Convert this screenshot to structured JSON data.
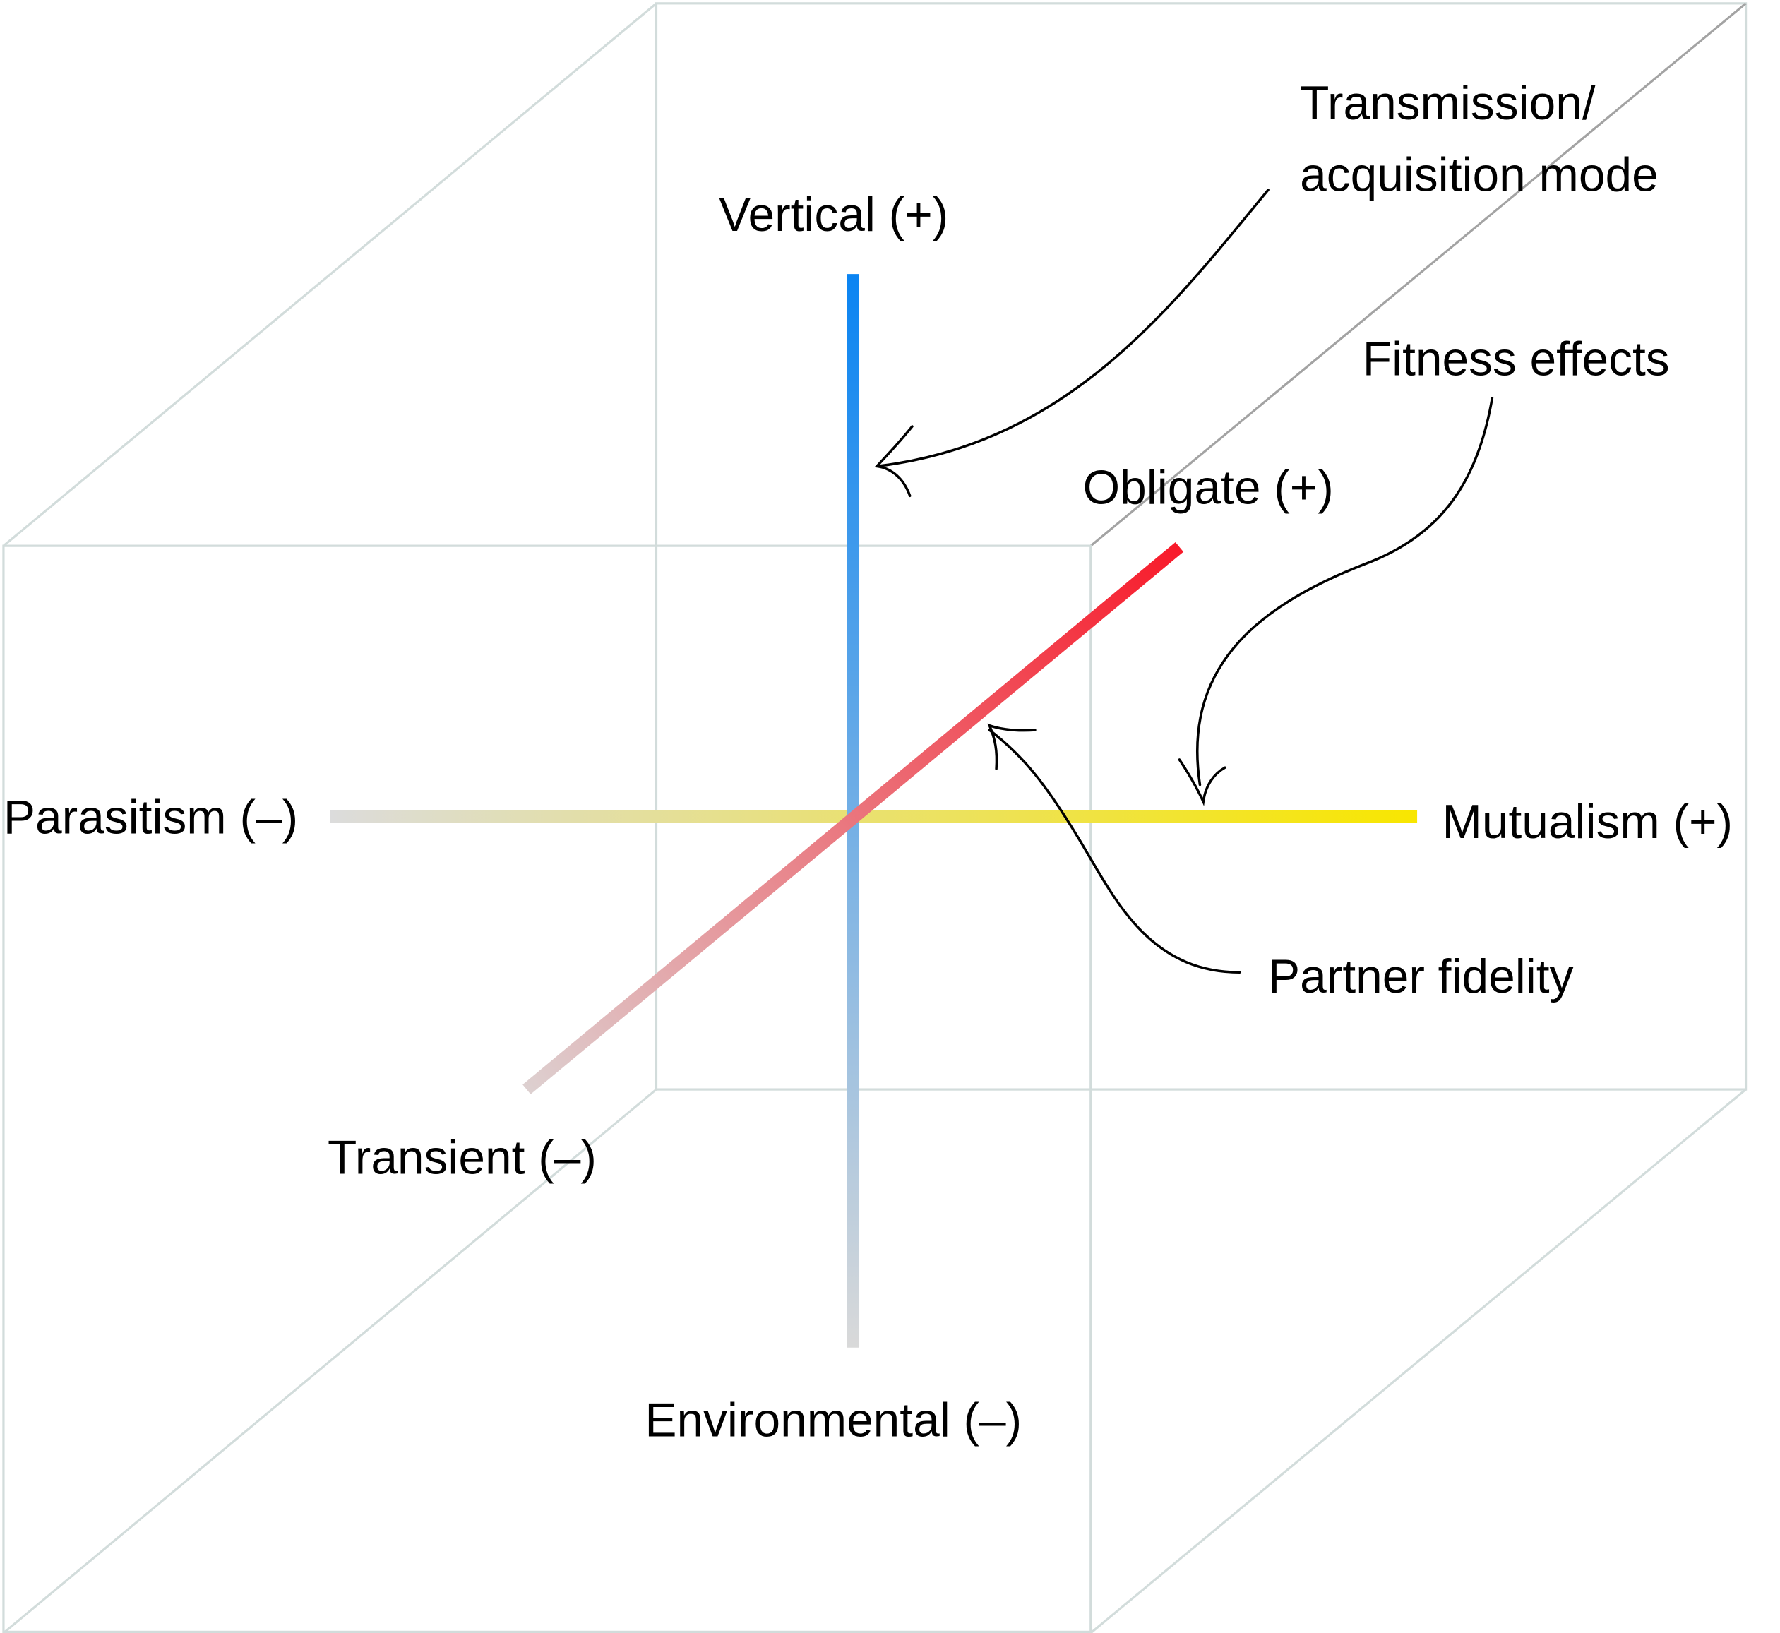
{
  "labels": {
    "vertical": "Vertical (+)",
    "environmental": "Environmental (–)",
    "parasitism": "Parasitism (–)",
    "mutualism": "Mutualism (+)",
    "obligate": "Obligate (+)",
    "transient": "Transient (–)",
    "transmission_line1": "Transmission/",
    "transmission_line2": "acquisition mode",
    "fitness_effects": "Fitness effects",
    "partner_fidelity": "Partner fidelity"
  },
  "axes": {
    "transmission": {
      "positive": "Vertical (+)",
      "negative": "Environmental (–)",
      "color_positive": "#0a84f2",
      "color_negative": "#d9d9d9"
    },
    "fitness": {
      "positive": "Mutualism (+)",
      "negative": "Parasitism (–)",
      "color_positive": "#f8e600",
      "color_negative": "#dcdcdc"
    },
    "fidelity": {
      "positive": "Obligate (+)",
      "negative": "Transient (–)",
      "color_positive": "#f81a2a",
      "color_negative": "#ddd0d0"
    }
  },
  "colors": {
    "cube_edge": "#d2dcdb",
    "cube_edge_dark": "#a3a3a3",
    "text": "#000000"
  }
}
